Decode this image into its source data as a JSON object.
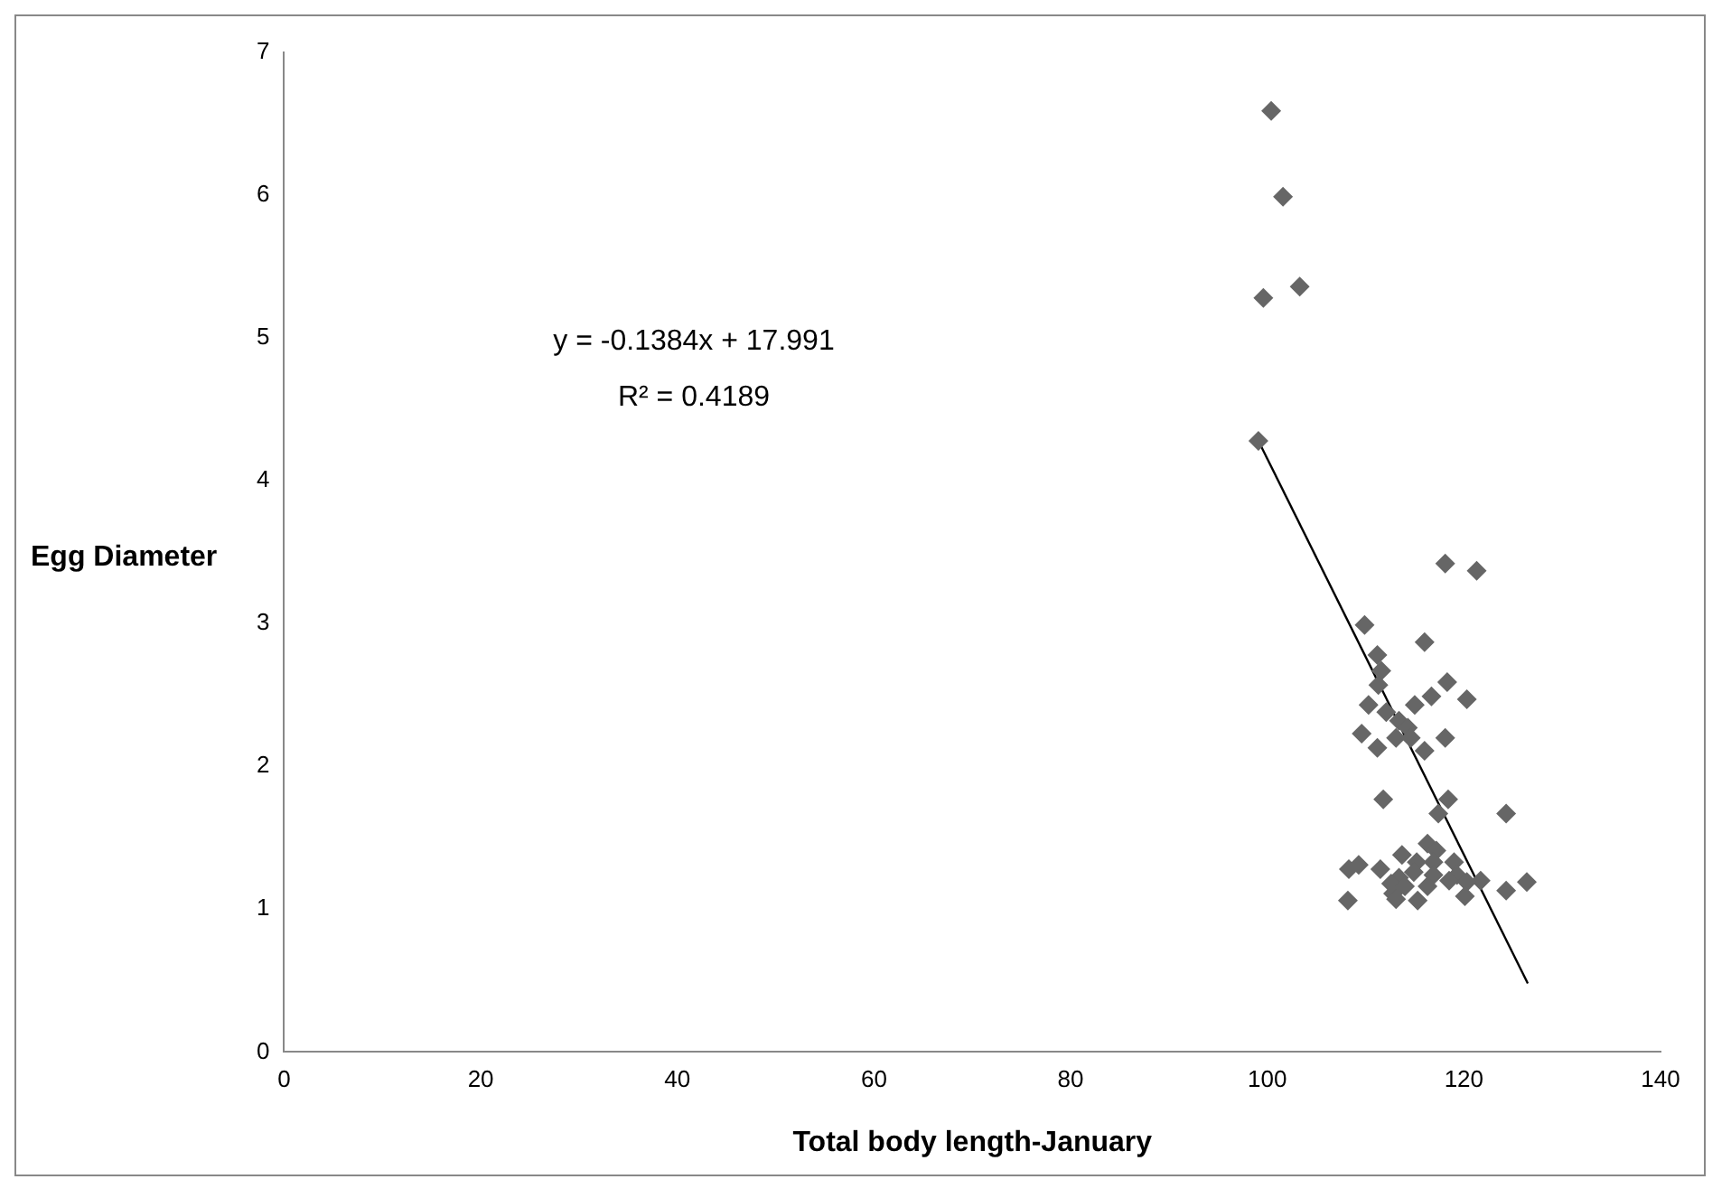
{
  "chart_data": {
    "type": "scatter",
    "xlabel": "Total body length-January",
    "ylabel": "Egg Diameter",
    "annotations": [
      "y = -0.1384x + 17.991",
      "R² = 0.4189"
    ],
    "xlim": [
      0,
      140
    ],
    "xticks": [
      0,
      20,
      40,
      60,
      80,
      100,
      120,
      140
    ],
    "ylim": [
      0,
      7
    ],
    "yticks": [
      0,
      1,
      2,
      3,
      4,
      5,
      6,
      7
    ],
    "grid": false,
    "legend": false,
    "marker": "diamond",
    "series": [
      {
        "color": "#666666",
        "x": [
          100.4,
          101.6,
          99.6,
          103.3,
          99.1,
          118.1,
          121.3,
          109.9,
          116.0,
          111.2,
          111.6,
          111.3,
          118.3,
          116.7,
          120.3,
          110.3,
          115.0,
          112.1,
          113.4,
          114.3,
          109.6,
          113.1,
          114.6,
          118.1,
          111.2,
          116.0,
          111.8,
          118.4,
          117.4,
          124.3,
          116.3,
          117.2,
          113.7,
          116.9,
          115.2,
          119.0,
          109.3,
          108.3,
          111.5,
          114.9,
          116.9,
          119.3,
          113.4,
          121.7,
          118.5,
          126.4,
          120.3,
          112.6,
          116.3,
          114.0,
          124.3,
          112.8,
          120.1,
          113.1,
          115.3,
          108.2
        ],
        "values": [
          6.59,
          5.99,
          5.28,
          5.36,
          4.28,
          3.42,
          3.37,
          2.99,
          2.87,
          2.78,
          2.67,
          2.57,
          2.59,
          2.49,
          2.47,
          2.43,
          2.43,
          2.38,
          2.32,
          2.27,
          2.23,
          2.2,
          2.2,
          2.2,
          2.13,
          2.11,
          1.77,
          1.77,
          1.67,
          1.67,
          1.46,
          1.41,
          1.38,
          1.33,
          1.33,
          1.33,
          1.31,
          1.28,
          1.28,
          1.26,
          1.24,
          1.24,
          1.22,
          1.2,
          1.2,
          1.19,
          1.19,
          1.18,
          1.16,
          1.16,
          1.13,
          1.11,
          1.09,
          1.07,
          1.06,
          1.06
        ]
      },
      {
        "type": "line",
        "color": "#000000",
        "marker": "none",
        "line_style": "solid",
        "x": [
          99.1,
          126.5
        ],
        "values": [
          4.28,
          0.48
        ]
      }
    ]
  }
}
